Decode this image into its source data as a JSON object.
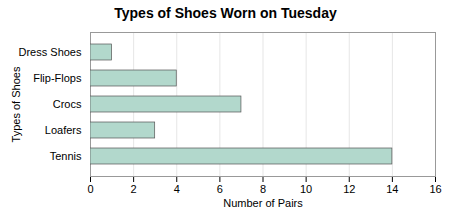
{
  "chart_data": {
    "type": "bar",
    "orientation": "horizontal",
    "title": "Types of Shoes Worn on Tuesday",
    "xlabel": "Number of Pairs",
    "ylabel": "Types of Shoes",
    "categories": [
      "Tennis",
      "Loafers",
      "Crocs",
      "Flip-Flops",
      "Dress Shoes"
    ],
    "values": [
      14,
      3,
      7,
      4,
      1
    ],
    "color": "#b2d8cc",
    "xlim": [
      0,
      16
    ],
    "xticks": [
      0,
      2,
      4,
      6,
      8,
      10,
      12,
      14,
      16
    ],
    "grid": true
  }
}
